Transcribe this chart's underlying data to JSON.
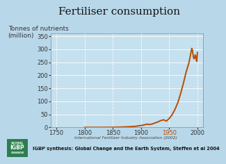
{
  "title": "Fertiliser consumption",
  "ylabel_line1": "Tonnes of nutrients",
  "ylabel_line2": "(million)",
  "source1": "International Fertilizer Industry Association (2002)",
  "source2": "IGBP synthesis: Global Change and the Earth System, Steffen et al 2004",
  "xlim": [
    1740,
    2010
  ],
  "ylim": [
    0,
    360
  ],
  "xticks": [
    1750,
    1800,
    1850,
    1900,
    1950,
    2000
  ],
  "yticks": [
    0,
    50,
    100,
    150,
    200,
    250,
    300,
    350
  ],
  "bg_color": "#b8d8ea",
  "plot_bg_color": "#c5e0ee",
  "line_color": "#b84c00",
  "grid_color": "#ffffff",
  "title_fontsize": 11,
  "label_fontsize": 6.5,
  "tick_fontsize": 6,
  "x_data": [
    1800,
    1820,
    1840,
    1850,
    1860,
    1870,
    1880,
    1890,
    1900,
    1905,
    1910,
    1915,
    1920,
    1925,
    1930,
    1935,
    1940,
    1945,
    1950,
    1955,
    1960,
    1965,
    1970,
    1975,
    1980,
    1985,
    1990,
    1991,
    1992,
    1993,
    1994,
    1995,
    1996,
    1997,
    1998,
    1999,
    2000
  ],
  "y_data": [
    0,
    0,
    0,
    0.3,
    0.8,
    1.5,
    2.5,
    4,
    7,
    9,
    12,
    11,
    13,
    17,
    21,
    26,
    29,
    24,
    34,
    48,
    68,
    93,
    128,
    168,
    212,
    248,
    303,
    298,
    283,
    268,
    263,
    268,
    278,
    273,
    258,
    253,
    288
  ],
  "logo_green": "#2e7d4f",
  "logo_text_color": "#ffffff"
}
